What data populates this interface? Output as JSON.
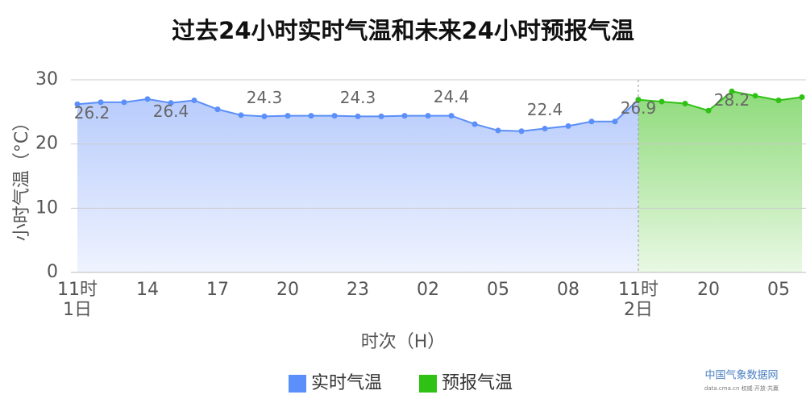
{
  "chart_data": {
    "type": "area-line",
    "title": "过去24小时实时气温和未来24小时预报气温",
    "x_label": "时次（H）",
    "y_label": "小时气温（°C）",
    "categories": [
      "11时",
      null,
      null,
      "14",
      null,
      null,
      "17",
      null,
      null,
      "20",
      null,
      null,
      "23",
      null,
      null,
      "02",
      null,
      null,
      "05",
      null,
      null,
      "08",
      null,
      null,
      "11时",
      null,
      null,
      "20",
      null,
      null,
      "05",
      null
    ],
    "x_sublabels": [
      "1日",
      null,
      null,
      null,
      null,
      null,
      null,
      null,
      null,
      null,
      null,
      null,
      null,
      null,
      null,
      null,
      null,
      null,
      null,
      null,
      null,
      null,
      null,
      null,
      "2日",
      null,
      null,
      null,
      null,
      null,
      null,
      null
    ],
    "series": [
      {
        "name": "实时气温",
        "color": "#5b8ff9",
        "values": [
          26.2,
          26.5,
          26.5,
          27.0,
          26.4,
          26.8,
          25.4,
          24.5,
          24.3,
          24.4,
          24.4,
          24.4,
          24.3,
          24.3,
          24.4,
          24.4,
          24.4,
          23.1,
          22.1,
          22.0,
          22.4,
          22.8,
          23.5,
          23.5,
          26.9,
          null,
          null,
          null,
          null,
          null,
          null,
          null
        ],
        "value_labels": [
          "26.2",
          null,
          null,
          null,
          "26.4",
          null,
          null,
          null,
          "24.3",
          null,
          null,
          null,
          "24.3",
          null,
          null,
          null,
          "24.4",
          null,
          null,
          null,
          "22.4",
          null,
          null,
          null,
          null,
          null,
          null,
          null,
          null,
          null,
          null,
          null
        ]
      },
      {
        "name": "预报气温",
        "color": "#2fc214",
        "values": [
          null,
          null,
          null,
          null,
          null,
          null,
          null,
          null,
          null,
          null,
          null,
          null,
          null,
          null,
          null,
          null,
          null,
          null,
          null,
          null,
          null,
          null,
          null,
          null,
          26.9,
          26.6,
          26.3,
          25.2,
          28.2,
          27.5,
          26.8,
          27.3
        ],
        "value_labels": [
          null,
          null,
          null,
          null,
          null,
          null,
          null,
          null,
          null,
          null,
          null,
          null,
          null,
          null,
          null,
          null,
          null,
          null,
          null,
          null,
          null,
          null,
          null,
          null,
          "26.9",
          null,
          null,
          null,
          "28.2",
          null,
          null,
          null
        ]
      }
    ],
    "ylim": [
      0,
      30
    ],
    "yticks": [
      0,
      10,
      20,
      30
    ],
    "grid": true,
    "brand": "中国气象数据网",
    "brand_sub": "data.cma.cn 权威·开放·共赢"
  }
}
